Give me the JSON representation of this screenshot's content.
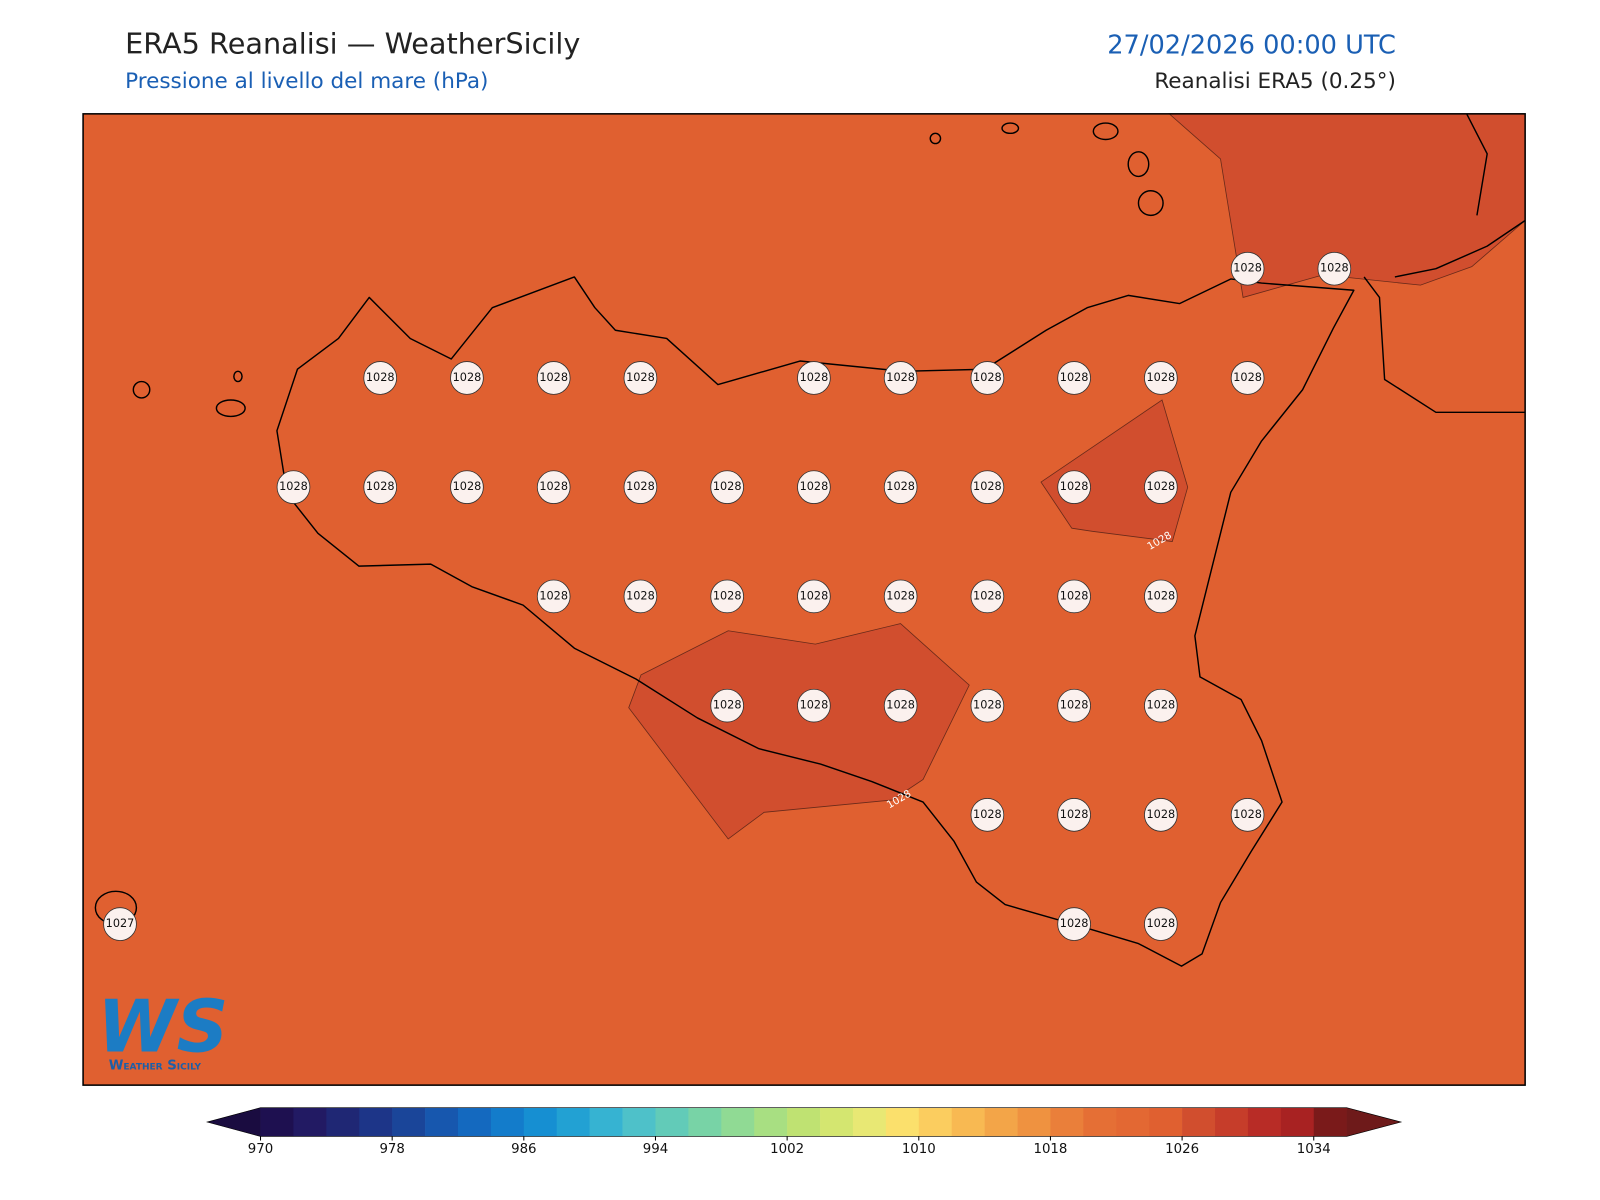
{
  "header": {
    "title": "ERA5 Reanalisi — WeatherSicily",
    "subtitle": "Pressione al livello del mare (hPa)",
    "date": "27/02/2026 00:00 UTC",
    "source": "Reanalisi ERA5 (0.25°)"
  },
  "labels": {
    "rows": [
      [
        null,
        null,
        null,
        null,
        null,
        null,
        null,
        null,
        null,
        null,
        null,
        null,
        null,
        1028,
        1028
      ],
      [
        null,
        null,
        null,
        1028,
        1028,
        1028,
        1028,
        null,
        1028,
        1028,
        1028,
        1028,
        1028,
        1028,
        null
      ],
      [
        null,
        null,
        1028,
        1028,
        1028,
        1028,
        1028,
        1028,
        1028,
        1028,
        1028,
        1028,
        1028,
        null,
        null
      ],
      [
        null,
        null,
        null,
        null,
        null,
        1028,
        1028,
        1028,
        1028,
        1028,
        1028,
        1028,
        1028,
        null,
        null
      ],
      [
        null,
        null,
        null,
        null,
        null,
        null,
        null,
        1028,
        1028,
        1028,
        1028,
        1028,
        1028,
        null,
        null
      ],
      [
        null,
        null,
        null,
        null,
        null,
        null,
        null,
        null,
        null,
        null,
        1028,
        1028,
        1028,
        1028,
        null
      ],
      [
        1027,
        null,
        null,
        null,
        null,
        null,
        null,
        null,
        null,
        null,
        null,
        1028,
        1028,
        null,
        null
      ]
    ]
  },
  "contour_labels": [
    1028,
    1028
  ],
  "logo": {
    "initials": "WS",
    "text": "Weather Sicily"
  },
  "colorbar": {
    "levels": [
      970,
      972,
      974,
      976,
      978,
      980,
      982,
      984,
      986,
      988,
      990,
      992,
      994,
      996,
      998,
      1000,
      1002,
      1004,
      1006,
      1008,
      1010,
      1012,
      1014,
      1016,
      1018,
      1020,
      1022,
      1024,
      1026,
      1028,
      1030,
      1032,
      1034,
      1036
    ],
    "colors": [
      "#1e1050",
      "#221a63",
      "#1f2774",
      "#1d3588",
      "#1a4599",
      "#1757ae",
      "#1469bf",
      "#137ccb",
      "#168fd2",
      "#22a1d3",
      "#36b3d2",
      "#4ec1c9",
      "#62cbb8",
      "#78d3a6",
      "#90da94",
      "#a8df82",
      "#bfe272",
      "#d4e670",
      "#e8e874",
      "#fbe06c",
      "#fbcd5f",
      "#f8b952",
      "#f3a548",
      "#ef9240",
      "#ea7f3a",
      "#e56f35",
      "#e36833",
      "#e06030",
      "#d14e2e",
      "#c63d2a",
      "#b82c26",
      "#a82222",
      "#7a1a1a"
    ],
    "ticks": [
      970,
      978,
      986,
      994,
      1002,
      1010,
      1018,
      1026,
      1034
    ]
  }
}
